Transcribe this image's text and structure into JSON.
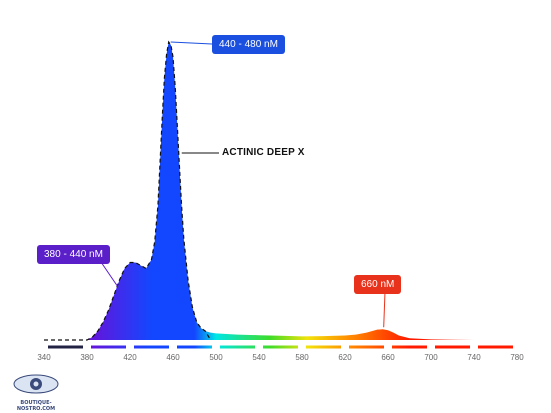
{
  "chart_data": {
    "type": "area",
    "title": "",
    "xlabel": "",
    "ylabel": "",
    "xlim": [
      340,
      780
    ],
    "ylim": [
      0,
      1
    ],
    "xticks": [
      "340",
      "380",
      "420",
      "460",
      "500",
      "540",
      "580",
      "620",
      "660",
      "700",
      "740",
      "780"
    ],
    "grid": false,
    "legend": "none",
    "series": [
      {
        "name": "ACTINIC DEEP X",
        "x": [
          380,
          385,
          390,
          395,
          400,
          405,
          410,
          415,
          420,
          425,
          430,
          435,
          440,
          443,
          446,
          448,
          450,
          452,
          454,
          456,
          458,
          460,
          462,
          464,
          466,
          468,
          470,
          474,
          478,
          482,
          486,
          490,
          495,
          500,
          510,
          520,
          540,
          560,
          580,
          600,
          620,
          630,
          640,
          645,
          650,
          655,
          660,
          665,
          670,
          680,
          700,
          720,
          740,
          760,
          780
        ],
        "y": [
          0.0,
          0.01,
          0.03,
          0.06,
          0.1,
          0.15,
          0.2,
          0.24,
          0.26,
          0.26,
          0.25,
          0.24,
          0.27,
          0.33,
          0.45,
          0.6,
          0.75,
          0.88,
          0.96,
          1.0,
          0.99,
          0.95,
          0.85,
          0.72,
          0.58,
          0.45,
          0.34,
          0.2,
          0.11,
          0.06,
          0.04,
          0.03,
          0.025,
          0.022,
          0.02,
          0.018,
          0.016,
          0.014,
          0.012,
          0.013,
          0.015,
          0.018,
          0.025,
          0.03,
          0.035,
          0.036,
          0.033,
          0.025,
          0.015,
          0.006,
          0.002,
          0.001,
          0.0,
          0.0,
          0.0
        ]
      }
    ],
    "annotations": [
      {
        "text": "440 - 480 nM",
        "color": "#1a4fe0"
      },
      {
        "text": "380 - 440 nM",
        "color": "#5b1fc9"
      },
      {
        "text": "660 nM",
        "color": "#e8321c"
      }
    ],
    "spectrum_colors": {
      "violet": "#6a11d8",
      "blue": "#1347ff",
      "cyan": "#00e6e6",
      "green": "#3ddc28",
      "yellow": "#f2e20a",
      "orange": "#ff8a00",
      "red": "#ff1a00"
    }
  },
  "watermark": {
    "brand_text": "BOUTIQUE-NOSTRO.COM"
  }
}
